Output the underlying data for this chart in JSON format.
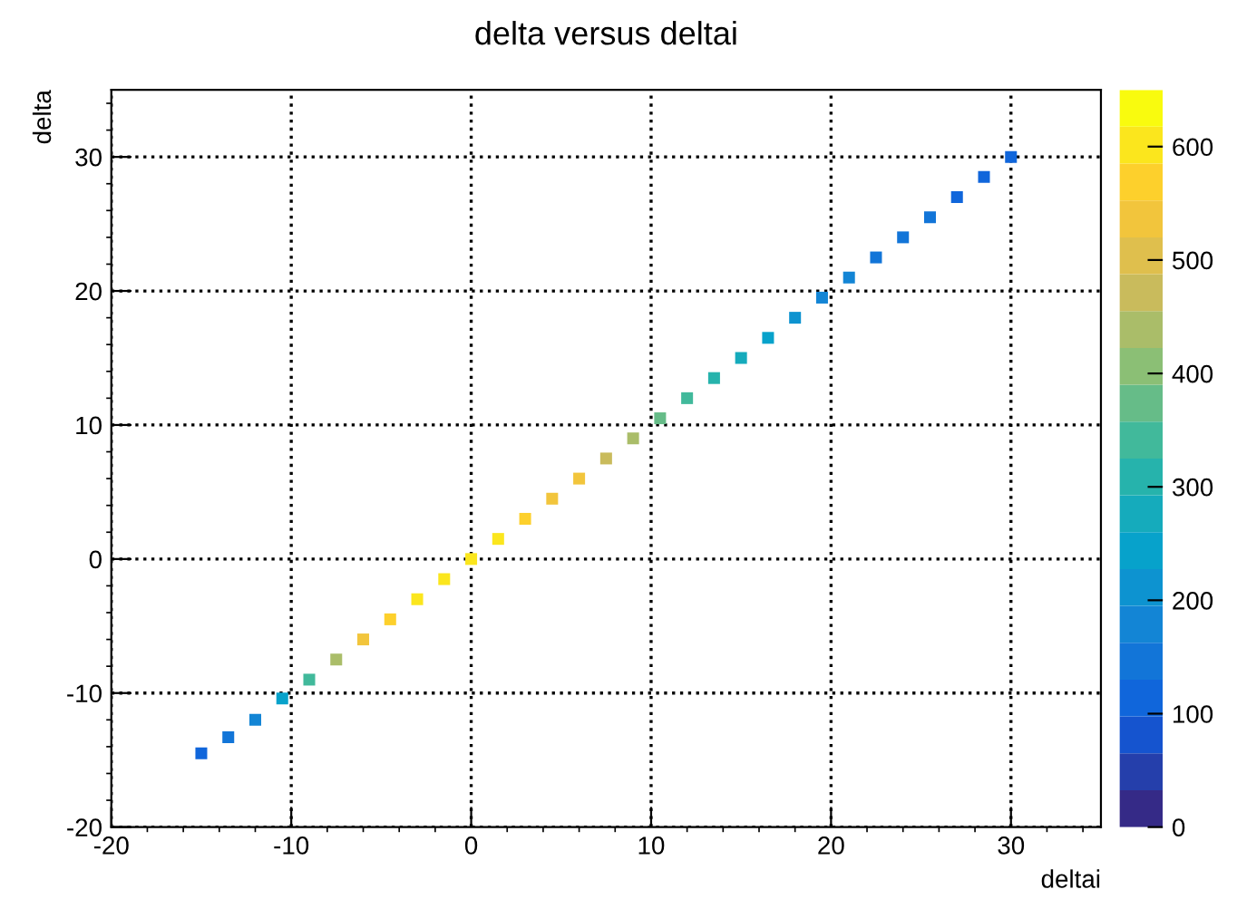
{
  "chart_data": {
    "type": "scatter",
    "title": "delta versus deltai",
    "xlabel": "deltai",
    "ylabel": "delta",
    "x": [
      -15,
      -13.5,
      -12,
      -10.5,
      -9,
      -7.5,
      -6,
      -4.5,
      -3,
      -1.5,
      0,
      1.5,
      3,
      4.5,
      6,
      7.5,
      9,
      10.5,
      12,
      13.5,
      15,
      16.5,
      18,
      19.5,
      21,
      22.5,
      24,
      25.5,
      27,
      28.5,
      30
    ],
    "values": [
      -14.5,
      -13.3,
      -12,
      -10.4,
      -9,
      -7.5,
      -6,
      -4.5,
      -3,
      -1.5,
      0,
      1.5,
      3,
      4.5,
      6,
      7.5,
      9,
      10.5,
      12,
      13.5,
      15,
      16.5,
      18,
      19.5,
      21,
      22.5,
      24,
      25.5,
      27,
      28.5,
      30
    ],
    "cvalues": [
      100,
      130,
      170,
      250,
      350,
      450,
      520,
      580,
      600,
      600,
      600,
      600,
      580,
      550,
      520,
      480,
      430,
      380,
      330,
      300,
      270,
      240,
      210,
      190,
      170,
      150,
      140,
      130,
      120,
      110,
      100
    ],
    "xlim": [
      -20,
      35
    ],
    "ylim": [
      -20,
      35
    ],
    "xticks": [
      -20,
      -10,
      0,
      10,
      20,
      30
    ],
    "yticks": [
      -20,
      -10,
      0,
      10,
      20,
      30
    ],
    "clim": [
      0,
      650
    ],
    "cticks": [
      0,
      100,
      200,
      300,
      400,
      500,
      600
    ],
    "grid": true,
    "marker": "square"
  }
}
